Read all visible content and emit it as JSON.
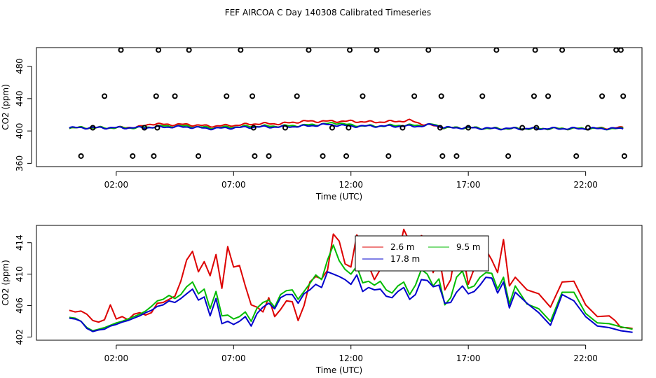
{
  "title": "FEF AIRCOA C  Day 140308  Calibrated Timeseries",
  "chart_data": [
    {
      "type": "line",
      "xlabel": "Time (UTC)",
      "ylabel": "CO2 (ppm)",
      "xlim": [
        -1.4,
        24.4
      ],
      "ylim": [
        356,
        503
      ],
      "xticks": [
        {
          "v": 2,
          "label": "02:00"
        },
        {
          "v": 7,
          "label": "07:00"
        },
        {
          "v": 12,
          "label": "12:00"
        },
        {
          "v": 17,
          "label": "17:00"
        },
        {
          "v": 22,
          "label": "22:00"
        }
      ],
      "yticks": [
        {
          "v": 360,
          "label": "360"
        },
        {
          "v": 400,
          "label": "400"
        },
        {
          "v": 440,
          "label": "440"
        },
        {
          "v": 480,
          "label": "480"
        }
      ],
      "series": [
        {
          "name": "2.6 m",
          "color": "#dd0000",
          "x": [
            0,
            1,
            2,
            3,
            3.5,
            4,
            5,
            6,
            7,
            8,
            9,
            10,
            11,
            12,
            13,
            14,
            14.5,
            15,
            16,
            17,
            18,
            20,
            22,
            23.6
          ],
          "values": [
            404,
            404,
            404,
            405,
            409,
            408,
            408,
            406,
            407,
            409,
            409,
            412,
            412,
            412,
            411,
            412,
            413,
            409,
            404,
            404,
            403,
            403,
            403,
            404
          ]
        },
        {
          "name": "9.5 m",
          "color": "#00bb00",
          "x": [
            0,
            2,
            3,
            4,
            5,
            6,
            7,
            8,
            9,
            10,
            11,
            11.5,
            12,
            13,
            14,
            15,
            15.5,
            16,
            17,
            18,
            20,
            22,
            23.6
          ],
          "values": [
            404,
            404,
            404,
            406,
            406,
            404,
            405,
            406,
            406,
            407,
            409,
            410,
            407,
            406,
            407,
            407,
            408,
            404,
            404,
            403,
            403,
            403,
            403
          ]
        },
        {
          "name": "17.8 m",
          "color": "#0000cc",
          "x": [
            0,
            2,
            3,
            4,
            5,
            6,
            7,
            8,
            9,
            10,
            11,
            12,
            13,
            14,
            15,
            15.5,
            16,
            17,
            18,
            20,
            22,
            23.6
          ],
          "values": [
            404,
            404,
            404,
            405,
            405,
            403,
            404,
            405,
            405,
            406,
            408,
            406,
            406,
            406,
            406,
            408,
            404,
            404,
            403,
            403,
            403,
            403
          ]
        }
      ],
      "calibration_points": {
        "x": [
          0.5,
          1,
          1.5,
          2.2,
          2.7,
          3.2,
          3.6,
          3.7,
          3.75,
          3.8,
          4.5,
          5.1,
          5.5,
          6.7,
          7.3,
          7.8,
          7.85,
          7.9,
          8.5,
          9.2,
          9.7,
          10.2,
          10.8,
          11.2,
          11.8,
          11.9,
          11.95,
          12.5,
          13.1,
          13.6,
          14.2,
          14.7,
          15.3,
          15.8,
          15.85,
          15.9,
          16.5,
          17,
          17.6,
          18.2,
          18.7,
          19.3,
          19.8,
          19.85,
          19.9,
          20.4,
          21,
          21.6,
          22.1,
          22.7,
          23.3,
          23.5,
          23.6,
          23.65
        ],
        "values": [
          369,
          404,
          443,
          500,
          369,
          404,
          369,
          443,
          404,
          500,
          443,
          500,
          369,
          443,
          500,
          443,
          404,
          369,
          369,
          404,
          443,
          500,
          369,
          404,
          369,
          404,
          500,
          443,
          500,
          369,
          404,
          443,
          500,
          404,
          443,
          369,
          369,
          404,
          443,
          500,
          369,
          404,
          443,
          500,
          404,
          443,
          500,
          369,
          404,
          443,
          500,
          500,
          443,
          369
        ]
      }
    },
    {
      "type": "line",
      "xlabel": "Time (UTC)",
      "ylabel": "CO2 (ppm)",
      "xlim": [
        -1.4,
        24.4
      ],
      "ylim": [
        401.6,
        416.2
      ],
      "xticks": [
        {
          "v": 2,
          "label": "02:00"
        },
        {
          "v": 7,
          "label": "07:00"
        },
        {
          "v": 12,
          "label": "12:00"
        },
        {
          "v": 17,
          "label": "17:00"
        },
        {
          "v": 22,
          "label": "22:00"
        }
      ],
      "yticks": [
        {
          "v": 402,
          "label": "402"
        },
        {
          "v": 406,
          "label": "406"
        },
        {
          "v": 410,
          "label": "410"
        },
        {
          "v": 414,
          "label": "414"
        }
      ],
      "legend": {
        "placement": "top-center",
        "ncol": 2,
        "order": [
          0,
          2,
          1
        ]
      },
      "series": [
        {
          "name": "2.6 m",
          "color": "#dd0000",
          "x": [
            0,
            0.25,
            0.5,
            0.75,
            1,
            1.25,
            1.5,
            1.75,
            2,
            2.25,
            2.5,
            2.75,
            3,
            3.25,
            3.5,
            3.75,
            4,
            4.25,
            4.5,
            4.75,
            5,
            5.25,
            5.5,
            5.75,
            6,
            6.25,
            6.5,
            6.75,
            7,
            7.25,
            7.5,
            7.75,
            8,
            8.25,
            8.5,
            8.75,
            9,
            9.25,
            9.5,
            9.75,
            10,
            10.25,
            10.5,
            10.75,
            11,
            11.25,
            11.5,
            11.75,
            12,
            12.25,
            12.5,
            12.75,
            13,
            13.25,
            13.5,
            13.75,
            14,
            14.25,
            14.5,
            14.75,
            15,
            15.25,
            15.5,
            15.75,
            16,
            16.25,
            16.5,
            16.75,
            17,
            17.25,
            17.5,
            17.75,
            18,
            18.25,
            18.5,
            18.75,
            19,
            19.5,
            20,
            20.5,
            21,
            21.5,
            22,
            22.5,
            23,
            23.25,
            23.5,
            23.75,
            24
          ],
          "values": [
            405.4,
            405.2,
            405.3,
            404.9,
            404.1,
            403.9,
            404.2,
            406.1,
            404.3,
            404.6,
            404.2,
            404.9,
            405.1,
            404.8,
            405.1,
            406.3,
            406.4,
            406.8,
            407.2,
            409.1,
            411.8,
            412.9,
            410.3,
            411.6,
            409.8,
            412.5,
            408.2,
            413.5,
            410.9,
            411.1,
            408.5,
            406.1,
            405.8,
            405.2,
            407.0,
            404.6,
            405.5,
            406.6,
            406.5,
            404.1,
            406.0,
            409.0,
            409.7,
            409.4,
            410.5,
            415.1,
            414.2,
            411.3,
            410.9,
            415.0,
            413.8,
            411.1,
            409.3,
            410.6,
            413.4,
            413.6,
            412.2,
            415.7,
            414.1,
            413.2,
            414.9,
            414.5,
            410.2,
            412.4,
            408.0,
            409.3,
            413.8,
            413.0,
            408.7,
            410.7,
            412.4,
            413.1,
            411.8,
            410.2,
            414.4,
            408.5,
            409.6,
            408.0,
            407.5,
            405.8,
            409.0,
            409.1,
            406.1,
            404.6,
            404.7,
            404.1,
            403.2,
            403.2,
            403.1
          ]
        },
        {
          "name": "9.5 m",
          "color": "#00bb00",
          "x": [
            0,
            0.25,
            0.5,
            0.75,
            1,
            1.25,
            1.5,
            1.75,
            2,
            2.25,
            2.5,
            2.75,
            3,
            3.25,
            3.5,
            3.75,
            4,
            4.25,
            4.5,
            4.75,
            5,
            5.25,
            5.5,
            5.75,
            6,
            6.25,
            6.5,
            6.75,
            7,
            7.25,
            7.5,
            7.75,
            8,
            8.25,
            8.5,
            8.75,
            9,
            9.25,
            9.5,
            9.75,
            10,
            10.25,
            10.5,
            10.75,
            11,
            11.25,
            11.5,
            11.75,
            12,
            12.25,
            12.5,
            12.75,
            13,
            13.25,
            13.5,
            13.75,
            14,
            14.25,
            14.5,
            14.75,
            15,
            15.25,
            15.5,
            15.75,
            16,
            16.25,
            16.5,
            16.75,
            17,
            17.25,
            17.5,
            17.75,
            18,
            18.25,
            18.5,
            18.75,
            19,
            19.5,
            20,
            20.5,
            21,
            21.5,
            22,
            22.5,
            23,
            23.5,
            24
          ],
          "values": [
            404.5,
            404.4,
            404.0,
            403.2,
            402.8,
            403.0,
            403.2,
            403.5,
            403.8,
            404.0,
            404.3,
            404.6,
            404.9,
            405.3,
            405.9,
            406.6,
            406.8,
            407.3,
            406.9,
            407.4,
            408.4,
            409.0,
            407.5,
            408.1,
            405.6,
            407.8,
            404.7,
            404.8,
            404.3,
            404.6,
            405.2,
            404.0,
            405.7,
            406.4,
            406.7,
            405.8,
            407.4,
            407.9,
            408.0,
            406.8,
            407.8,
            408.8,
            409.9,
            409.3,
            411.8,
            413.7,
            411.7,
            410.6,
            410.0,
            411.0,
            408.9,
            409.1,
            408.6,
            409.1,
            408.0,
            407.6,
            408.5,
            409.0,
            407.4,
            408.6,
            410.6,
            410.0,
            408.5,
            409.4,
            406.1,
            407.0,
            409.6,
            410.4,
            408.2,
            408.5,
            409.6,
            410.2,
            410.1,
            408.1,
            409.6,
            406.2,
            408.5,
            406.2,
            405.6,
            404.0,
            407.7,
            407.7,
            405.0,
            403.8,
            403.7,
            403.3,
            403.0
          ]
        },
        {
          "name": "17.8 m",
          "color": "#0000cc",
          "x": [
            0,
            0.25,
            0.5,
            0.75,
            1,
            1.25,
            1.5,
            1.75,
            2,
            2.25,
            2.5,
            2.75,
            3,
            3.25,
            3.5,
            3.75,
            4,
            4.25,
            4.5,
            4.75,
            5,
            5.25,
            5.5,
            5.75,
            6,
            6.25,
            6.5,
            6.75,
            7,
            7.25,
            7.5,
            7.75,
            8,
            8.25,
            8.5,
            8.75,
            9,
            9.25,
            9.5,
            9.75,
            10,
            10.25,
            10.5,
            10.75,
            11,
            11.25,
            11.5,
            11.75,
            12,
            12.25,
            12.5,
            12.75,
            13,
            13.25,
            13.5,
            13.75,
            14,
            14.25,
            14.5,
            14.75,
            15,
            15.25,
            15.5,
            15.75,
            16,
            16.25,
            16.5,
            16.75,
            17,
            17.25,
            17.5,
            17.75,
            18,
            18.25,
            18.5,
            18.75,
            19,
            19.5,
            20,
            20.5,
            21,
            21.5,
            22,
            22.5,
            23,
            23.5,
            24
          ],
          "values": [
            404.4,
            404.3,
            404.0,
            403.1,
            402.7,
            402.9,
            403.0,
            403.4,
            403.6,
            403.9,
            404.1,
            404.4,
            404.7,
            405.1,
            405.4,
            405.9,
            406.1,
            406.6,
            406.4,
            406.9,
            407.5,
            408.1,
            406.7,
            407.1,
            404.7,
            406.9,
            403.7,
            404.0,
            403.6,
            404.0,
            404.6,
            403.4,
            405.0,
            405.8,
            406.3,
            405.6,
            407.0,
            407.4,
            407.4,
            406.3,
            407.5,
            408.0,
            408.7,
            408.3,
            410.3,
            410.0,
            409.7,
            409.3,
            408.7,
            409.9,
            407.8,
            408.3,
            408.0,
            408.1,
            407.2,
            407.0,
            407.8,
            408.3,
            406.8,
            407.4,
            409.3,
            409.2,
            408.4,
            408.6,
            406.3,
            406.4,
            407.7,
            408.5,
            407.5,
            407.8,
            408.6,
            409.6,
            409.5,
            407.6,
            409.0,
            405.7,
            407.7,
            406.3,
            405.1,
            403.5,
            407.4,
            406.6,
            404.6,
            403.4,
            403.2,
            402.8,
            402.6
          ]
        }
      ]
    }
  ]
}
